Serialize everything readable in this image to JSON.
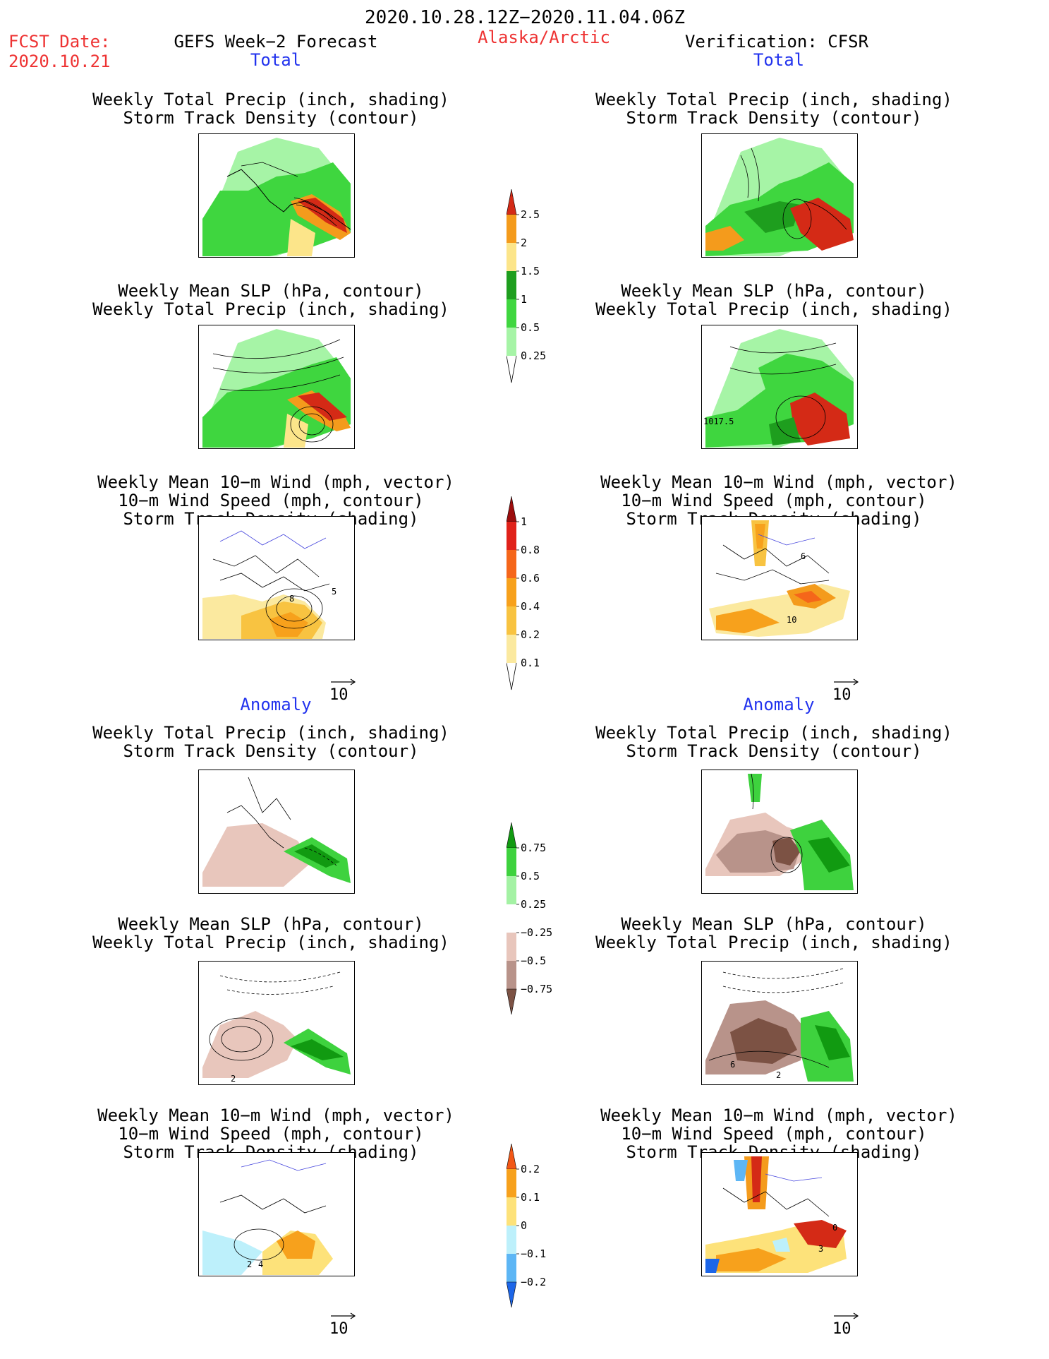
{
  "header": {
    "date_range": "2020.10.28.12Z−2020.11.04.06Z",
    "fcst_label": "FCST Date:",
    "fcst_date": "2020.10.21",
    "left_title": "GEFS Week−2 Forecast",
    "region": "Alaska/Arctic",
    "right_title": "Verification: CFSR"
  },
  "sections": {
    "total_left": "Total",
    "total_right": "Total",
    "anomaly_left": "Anomaly",
    "anomaly_right": "Anomaly"
  },
  "titles": {
    "precip_track": [
      "Weekly Total Precip (inch, shading)",
      "Storm Track Density (contour)"
    ],
    "slp_precip": [
      "Weekly Mean SLP (hPa, contour)",
      "Weekly Total Precip (inch, shading)"
    ],
    "wind_track": [
      "Weekly Mean 10−m Wind (mph, vector)",
      "10−m Wind Speed (mph, contour)",
      "Storm Track Density (shading)"
    ]
  },
  "panel_labels": {
    "slp_obs_total": "1017.5",
    "wind_fc_total": [
      "8",
      "5"
    ],
    "wind_obs_total": [
      "10",
      "6"
    ],
    "slp_fc_anom": "2",
    "slp_obs_anom": [
      "6",
      "2"
    ],
    "wind_fc_anom": [
      "2",
      "4"
    ],
    "wind_obs_anom": [
      "0",
      "3"
    ]
  },
  "vector_ref": "10",
  "colorbars": {
    "precip_total": {
      "labels": [
        "2.5",
        "2",
        "1.5",
        "1",
        "0.5",
        "0.25"
      ],
      "colors": [
        "#d42a16",
        "#f49b1c",
        "#fce58a",
        "#1e9e1e",
        "#3fd63f",
        "#a6f4a6"
      ]
    },
    "track_total": {
      "labels": [
        "1",
        "0.8",
        "0.6",
        "0.4",
        "0.2",
        "0.1"
      ],
      "colors": [
        "#9c0d0d",
        "#e0221a",
        "#f5661a",
        "#f7a11c",
        "#f8c341",
        "#fbe99f"
      ]
    },
    "precip_anom": {
      "labels": [
        "0.75",
        "0.5",
        "0.25",
        "−0.25",
        "−0.5",
        "−0.75"
      ],
      "colors": [
        "#119a11",
        "#3ed23e",
        "#a4f2a4",
        "#ffffff",
        "#e8c6bc",
        "#b8938a",
        "#7c5244"
      ]
    },
    "track_anom": {
      "labels": [
        "0.2",
        "0.1",
        "0",
        "−0.1",
        "−0.2"
      ],
      "colors": [
        "#f25716",
        "#f7a11c",
        "#fde27a",
        "#bdf0fb",
        "#5db6f5",
        "#1d66e8"
      ]
    }
  }
}
